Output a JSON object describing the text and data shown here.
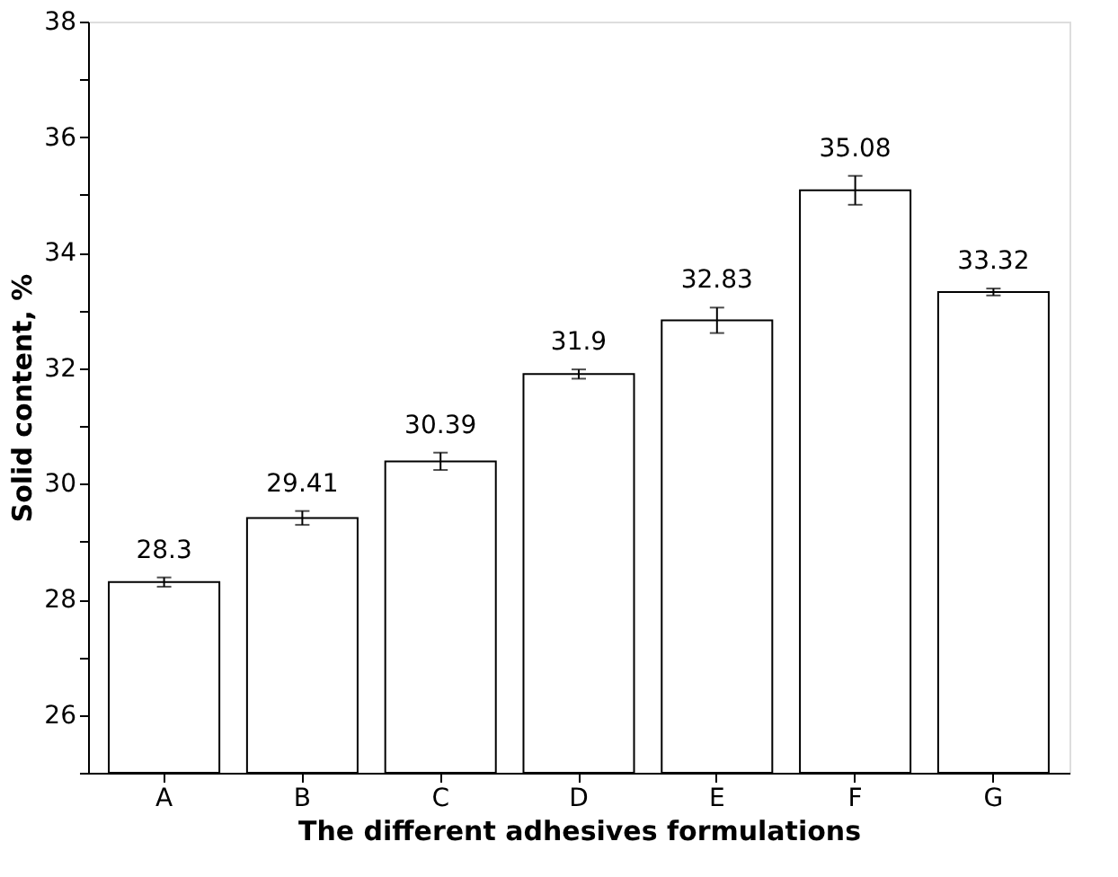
{
  "chart_data": {
    "type": "bar",
    "xlabel": "The different adhesives formulations",
    "ylabel": "Solid content, %",
    "categories": [
      "A",
      "B",
      "C",
      "D",
      "E",
      "F",
      "G"
    ],
    "values": [
      28.3,
      29.41,
      30.39,
      31.9,
      32.83,
      35.08,
      33.32
    ],
    "errors": [
      0.08,
      0.12,
      0.15,
      0.08,
      0.22,
      0.25,
      0.06
    ],
    "color": "#ffffff",
    "ylim": [
      25,
      38
    ],
    "yticks": [
      {
        "value": 25,
        "label": null
      },
      26,
      {
        "value": 27,
        "label": null
      },
      28,
      {
        "value": 29,
        "label": null
      },
      30,
      {
        "value": 31,
        "label": null
      },
      32,
      {
        "value": 33,
        "label": null
      },
      34,
      {
        "value": 35,
        "label": null
      },
      36,
      {
        "value": 37,
        "label": null
      },
      38
    ],
    "data_labels": true,
    "grid": false
  }
}
